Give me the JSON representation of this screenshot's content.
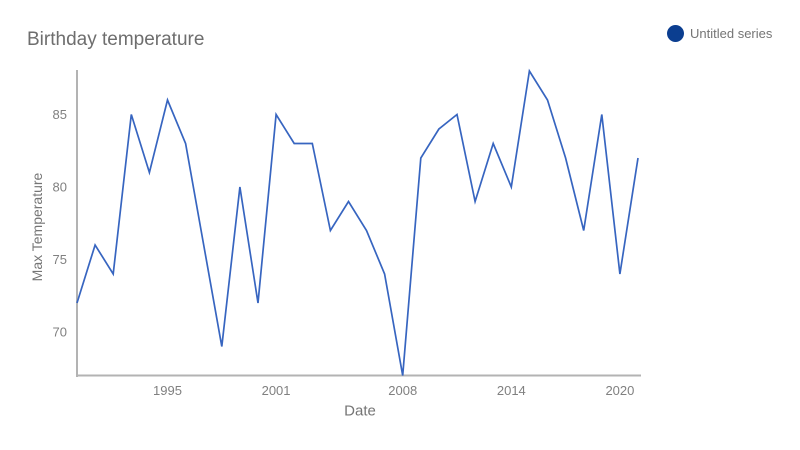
{
  "chart_data": {
    "type": "line",
    "title": "Birthday temperature",
    "xlabel": "Date",
    "ylabel": "Max Temperature",
    "legend": {
      "position": "top-right",
      "series_label": "Untitled series"
    },
    "x": [
      1990,
      1991,
      1992,
      1993,
      1994,
      1995,
      1996,
      1997,
      1998,
      1999,
      2000,
      2001,
      2002,
      2003,
      2004,
      2005,
      2006,
      2007,
      2008,
      2009,
      2010,
      2011,
      2012,
      2013,
      2014,
      2015,
      2016,
      2017,
      2018,
      2019,
      2020,
      2021
    ],
    "series": [
      {
        "name": "Untitled series",
        "values": [
          72,
          76,
          74,
          85,
          81,
          86,
          83,
          76,
          69,
          80,
          72,
          85,
          83,
          83,
          77,
          79,
          77,
          74,
          67,
          82,
          84,
          85,
          79,
          83,
          80,
          88,
          86,
          82,
          77,
          85,
          74,
          82
        ]
      }
    ],
    "x_tick_years": [
      1995,
      2001,
      2008,
      2014,
      2020
    ],
    "x_tick_labels": [
      "1995",
      "2001",
      "2008",
      "2014",
      "2020"
    ],
    "y_ticks": [
      70,
      75,
      80,
      85
    ],
    "y_tick_labels": [
      "70",
      "75",
      "80",
      "85"
    ],
    "xlim": [
      1990,
      2021
    ],
    "ylim": [
      67,
      88
    ],
    "grid": "off",
    "colors": {
      "line": "#3765c0",
      "legend_dot": "#0b3e90",
      "axis_line": "#b3b3b3",
      "title_text": "#6e6e6e",
      "axis_title_text": "#757575",
      "tick_text": "#808080"
    }
  }
}
